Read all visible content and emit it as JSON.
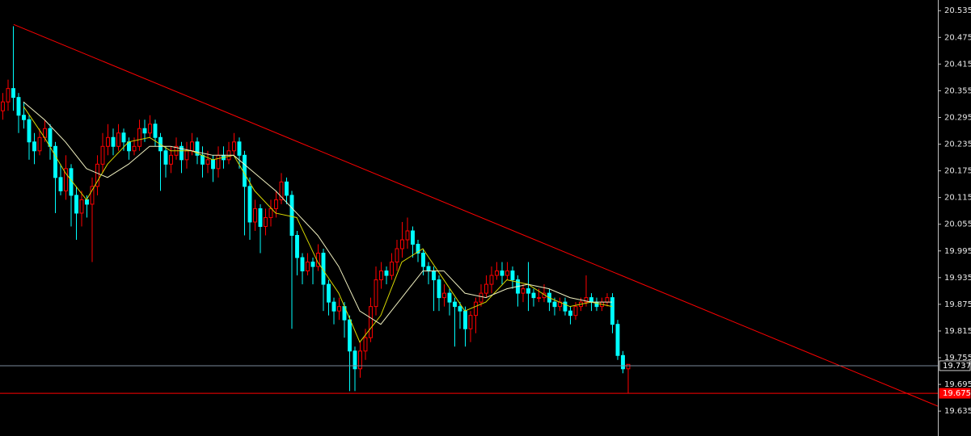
{
  "chart_data": {
    "type": "candlestick",
    "up_color": "#ff0000",
    "down_color": "#00ffff",
    "axis_color": "#c0c0c0",
    "grid": false,
    "xlim": [
      -0.46,
      178
    ],
    "ylim": [
      19.579,
      20.559
    ],
    "yticks": [
      20.535,
      20.475,
      20.415,
      20.355,
      20.295,
      20.235,
      20.175,
      20.115,
      20.055,
      19.995,
      19.935,
      19.875,
      19.815,
      19.755,
      19.695,
      19.635
    ],
    "ohlc": [
      [
        20.31,
        20.35,
        20.29,
        20.33
      ],
      [
        20.33,
        20.38,
        20.31,
        20.36
      ],
      [
        20.36,
        20.5,
        20.31,
        20.34
      ],
      [
        20.34,
        20.35,
        20.26,
        20.3
      ],
      [
        20.3,
        20.33,
        20.27,
        20.29
      ],
      [
        20.29,
        20.3,
        20.2,
        20.24
      ],
      [
        20.24,
        20.26,
        20.19,
        20.22
      ],
      [
        20.22,
        20.27,
        20.21,
        20.25
      ],
      [
        20.25,
        20.29,
        20.24,
        20.27
      ],
      [
        20.27,
        20.28,
        20.2,
        20.23
      ],
      [
        20.23,
        20.24,
        20.08,
        20.16
      ],
      [
        20.16,
        20.19,
        20.12,
        20.13
      ],
      [
        20.13,
        20.21,
        20.11,
        20.18
      ],
      [
        20.18,
        20.19,
        20.05,
        20.12
      ],
      [
        20.12,
        20.14,
        20.02,
        20.08
      ],
      [
        20.08,
        20.13,
        20.05,
        20.11
      ],
      [
        20.11,
        20.12,
        20.07,
        20.1
      ],
      [
        20.1,
        20.16,
        19.97,
        20.14
      ],
      [
        20.14,
        20.21,
        20.12,
        20.19
      ],
      [
        20.19,
        20.26,
        20.17,
        20.23
      ],
      [
        20.23,
        20.28,
        20.21,
        20.25
      ],
      [
        20.25,
        20.27,
        20.21,
        20.23
      ],
      [
        20.23,
        20.28,
        20.22,
        20.26
      ],
      [
        20.26,
        20.27,
        20.22,
        20.24
      ],
      [
        20.24,
        20.25,
        20.2,
        20.22
      ],
      [
        20.22,
        20.25,
        20.21,
        20.23
      ],
      [
        20.23,
        20.29,
        20.22,
        20.27
      ],
      [
        20.27,
        20.29,
        20.24,
        20.26
      ],
      [
        20.26,
        20.3,
        20.25,
        20.28
      ],
      [
        20.28,
        20.29,
        20.23,
        20.25
      ],
      [
        20.25,
        20.26,
        20.13,
        20.22
      ],
      [
        20.22,
        20.23,
        20.16,
        20.19
      ],
      [
        20.19,
        20.23,
        20.17,
        20.21
      ],
      [
        20.21,
        20.25,
        20.2,
        20.23
      ],
      [
        20.23,
        20.24,
        20.17,
        20.2
      ],
      [
        20.2,
        20.24,
        20.18,
        20.22
      ],
      [
        20.22,
        20.26,
        20.21,
        20.24
      ],
      [
        20.24,
        20.25,
        20.19,
        20.21
      ],
      [
        20.21,
        20.23,
        20.16,
        20.19
      ],
      [
        20.19,
        20.22,
        20.17,
        20.2
      ],
      [
        20.2,
        20.21,
        20.15,
        20.18
      ],
      [
        20.18,
        20.23,
        20.16,
        20.21
      ],
      [
        20.21,
        20.23,
        20.18,
        20.2
      ],
      [
        20.2,
        20.24,
        20.19,
        20.22
      ],
      [
        20.22,
        20.26,
        20.21,
        20.24
      ],
      [
        20.24,
        20.25,
        20.18,
        20.21
      ],
      [
        20.21,
        20.22,
        20.03,
        20.14
      ],
      [
        20.14,
        20.16,
        20.02,
        20.06
      ],
      [
        20.06,
        20.11,
        20.04,
        20.09
      ],
      [
        20.09,
        20.1,
        19.99,
        20.05
      ],
      [
        20.05,
        20.09,
        20.03,
        20.07
      ],
      [
        20.07,
        20.11,
        20.05,
        20.09
      ],
      [
        20.09,
        20.13,
        20.07,
        20.11
      ],
      [
        20.11,
        20.17,
        20.1,
        20.15
      ],
      [
        20.15,
        20.16,
        20.1,
        20.12
      ],
      [
        20.12,
        20.13,
        19.82,
        20.03
      ],
      [
        20.03,
        20.04,
        19.94,
        19.98
      ],
      [
        19.98,
        19.99,
        19.92,
        19.95
      ],
      [
        19.95,
        19.99,
        19.94,
        19.97
      ],
      [
        19.97,
        19.98,
        19.92,
        19.96
      ],
      [
        19.96,
        20.01,
        19.95,
        19.99
      ],
      [
        19.99,
        20.0,
        19.86,
        19.92
      ],
      [
        19.92,
        19.93,
        19.85,
        19.88
      ],
      [
        19.88,
        19.89,
        19.83,
        19.86
      ],
      [
        19.86,
        19.89,
        19.84,
        19.87
      ],
      [
        19.87,
        19.88,
        19.8,
        19.84
      ],
      [
        19.84,
        19.85,
        19.68,
        19.77
      ],
      [
        19.77,
        19.78,
        19.68,
        19.73
      ],
      [
        19.73,
        19.79,
        19.71,
        19.77
      ],
      [
        19.77,
        19.82,
        19.75,
        19.8
      ],
      [
        19.8,
        19.89,
        19.79,
        19.87
      ],
      [
        19.87,
        19.96,
        19.85,
        19.93
      ],
      [
        19.93,
        19.97,
        19.91,
        19.95
      ],
      [
        19.95,
        19.96,
        19.92,
        19.94
      ],
      [
        19.94,
        19.99,
        19.93,
        19.97
      ],
      [
        19.97,
        20.02,
        19.95,
        20.0
      ],
      [
        20.0,
        20.06,
        19.98,
        20.02
      ],
      [
        20.02,
        20.07,
        20.0,
        20.04
      ],
      [
        20.04,
        20.05,
        19.98,
        20.01
      ],
      [
        20.01,
        20.02,
        19.97,
        19.99
      ],
      [
        19.99,
        20.0,
        19.94,
        19.96
      ],
      [
        19.96,
        19.97,
        19.92,
        19.95
      ],
      [
        19.95,
        19.96,
        19.86,
        19.93
      ],
      [
        19.93,
        19.94,
        19.86,
        19.89
      ],
      [
        19.89,
        19.92,
        19.87,
        19.9
      ],
      [
        19.9,
        19.91,
        19.85,
        19.88
      ],
      [
        19.88,
        19.89,
        19.78,
        19.87
      ],
      [
        19.87,
        19.88,
        19.82,
        19.86
      ],
      [
        19.86,
        19.87,
        19.78,
        19.82
      ],
      [
        19.82,
        19.86,
        19.79,
        19.85
      ],
      [
        19.85,
        19.89,
        19.81,
        19.88
      ],
      [
        19.88,
        19.92,
        19.87,
        19.9
      ],
      [
        19.9,
        19.94,
        19.89,
        19.92
      ],
      [
        19.92,
        19.96,
        19.9,
        19.94
      ],
      [
        19.94,
        19.97,
        19.93,
        19.95
      ],
      [
        19.95,
        19.97,
        19.92,
        19.94
      ],
      [
        19.94,
        19.97,
        19.93,
        19.95
      ],
      [
        19.95,
        19.96,
        19.91,
        19.93
      ],
      [
        19.93,
        19.94,
        19.87,
        19.9
      ],
      [
        19.9,
        19.92,
        19.88,
        19.91
      ],
      [
        19.91,
        19.97,
        19.86,
        19.9
      ],
      [
        19.9,
        19.91,
        19.87,
        19.89
      ],
      [
        19.89,
        19.91,
        19.88,
        19.89
      ],
      [
        19.89,
        19.92,
        19.88,
        19.9
      ],
      [
        19.9,
        19.91,
        19.86,
        19.88
      ],
      [
        19.88,
        19.89,
        19.85,
        19.87
      ],
      [
        19.87,
        19.89,
        19.86,
        19.88
      ],
      [
        19.88,
        19.89,
        19.85,
        19.86
      ],
      [
        19.86,
        19.87,
        19.83,
        19.85
      ],
      [
        19.85,
        19.88,
        19.84,
        19.87
      ],
      [
        19.87,
        19.89,
        19.86,
        19.88
      ],
      [
        19.88,
        19.94,
        19.87,
        19.89
      ],
      [
        19.89,
        19.9,
        19.86,
        19.88
      ],
      [
        19.88,
        19.89,
        19.86,
        19.87
      ],
      [
        19.87,
        19.89,
        19.86,
        19.88
      ],
      [
        19.88,
        19.9,
        19.87,
        19.89
      ],
      [
        19.89,
        19.9,
        19.81,
        19.83
      ],
      [
        19.83,
        19.84,
        19.75,
        19.76
      ],
      [
        19.76,
        19.77,
        19.72,
        19.73
      ],
      [
        19.73,
        19.74,
        19.675,
        19.74
      ]
    ],
    "series": [
      {
        "color": "#d8d800",
        "x": [
          4,
          8,
          12,
          16,
          20,
          24,
          28,
          32,
          36,
          40,
          44,
          48,
          52,
          56,
          60,
          64,
          68,
          72,
          76,
          80,
          84,
          88,
          92,
          96,
          100,
          104,
          108,
          112,
          116
        ],
        "values": [
          20.32,
          20.25,
          20.17,
          20.11,
          20.19,
          20.24,
          20.25,
          20.22,
          20.22,
          20.2,
          20.21,
          20.13,
          20.08,
          20.07,
          19.97,
          19.9,
          19.79,
          19.85,
          19.97,
          20.0,
          19.93,
          19.86,
          19.88,
          19.93,
          19.92,
          19.89,
          19.87,
          19.88,
          19.87
        ]
      },
      {
        "color": "#f0f0c0",
        "x": [
          4,
          8,
          12,
          16,
          20,
          24,
          28,
          32,
          36,
          40,
          44,
          48,
          52,
          56,
          60,
          64,
          68,
          72,
          76,
          80,
          84,
          88,
          92,
          96,
          100,
          104,
          108,
          112,
          116
        ],
        "values": [
          20.33,
          20.29,
          20.24,
          20.18,
          20.16,
          20.19,
          20.23,
          20.23,
          20.22,
          20.21,
          20.21,
          20.17,
          20.13,
          20.08,
          20.03,
          19.96,
          19.86,
          19.83,
          19.89,
          19.95,
          19.95,
          19.9,
          19.89,
          19.91,
          19.92,
          19.91,
          19.89,
          19.88,
          19.88
        ]
      }
    ],
    "trendline": {
      "color": "#ff0000",
      "x": [
        2.15,
        178
      ],
      "values": [
        20.504,
        19.646
      ]
    },
    "levels": [
      {
        "value": 19.737,
        "color": "#7a8a9a"
      },
      {
        "value": 19.675,
        "color": "#ff0000"
      }
    ]
  }
}
